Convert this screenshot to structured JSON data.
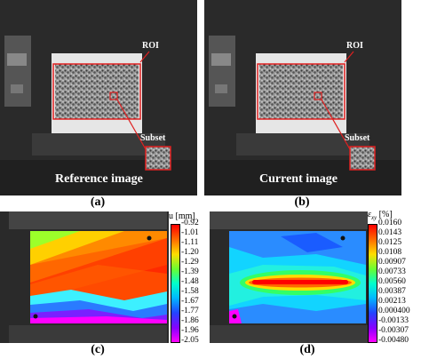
{
  "panels": {
    "a": {
      "caption": "(a)",
      "roi_label": "ROI",
      "subset_label": "Subset",
      "image_label": "Reference image"
    },
    "b": {
      "caption": "(b)",
      "roi_label": "ROI",
      "subset_label": "Subset",
      "image_label": "Current image"
    },
    "c": {
      "caption": "(c)",
      "colorbar_title": "u [mm]",
      "ticks": [
        "-0.92",
        "-1.01",
        "-1.11",
        "-1.20",
        "-1.29",
        "-1.39",
        "-1.48",
        "-1.58",
        "-1.67",
        "-1.77",
        "-1.86",
        "-1.96",
        "-2.05"
      ]
    },
    "d": {
      "caption": "(d)",
      "colorbar_title_main": "ε",
      "colorbar_title_sub": "xy",
      "colorbar_title_unit": " [%]",
      "ticks": [
        "0.0160",
        "0.0143",
        "0.0125",
        "0.0108",
        "0.00907",
        "0.00733",
        "0.00560",
        "0.00387",
        "0.00213",
        "0.000400",
        "-0.00133",
        "-0.00307",
        "-0.00480"
      ]
    }
  },
  "colors": {
    "roi_box": "#e02020",
    "background_photo": "#262626"
  }
}
